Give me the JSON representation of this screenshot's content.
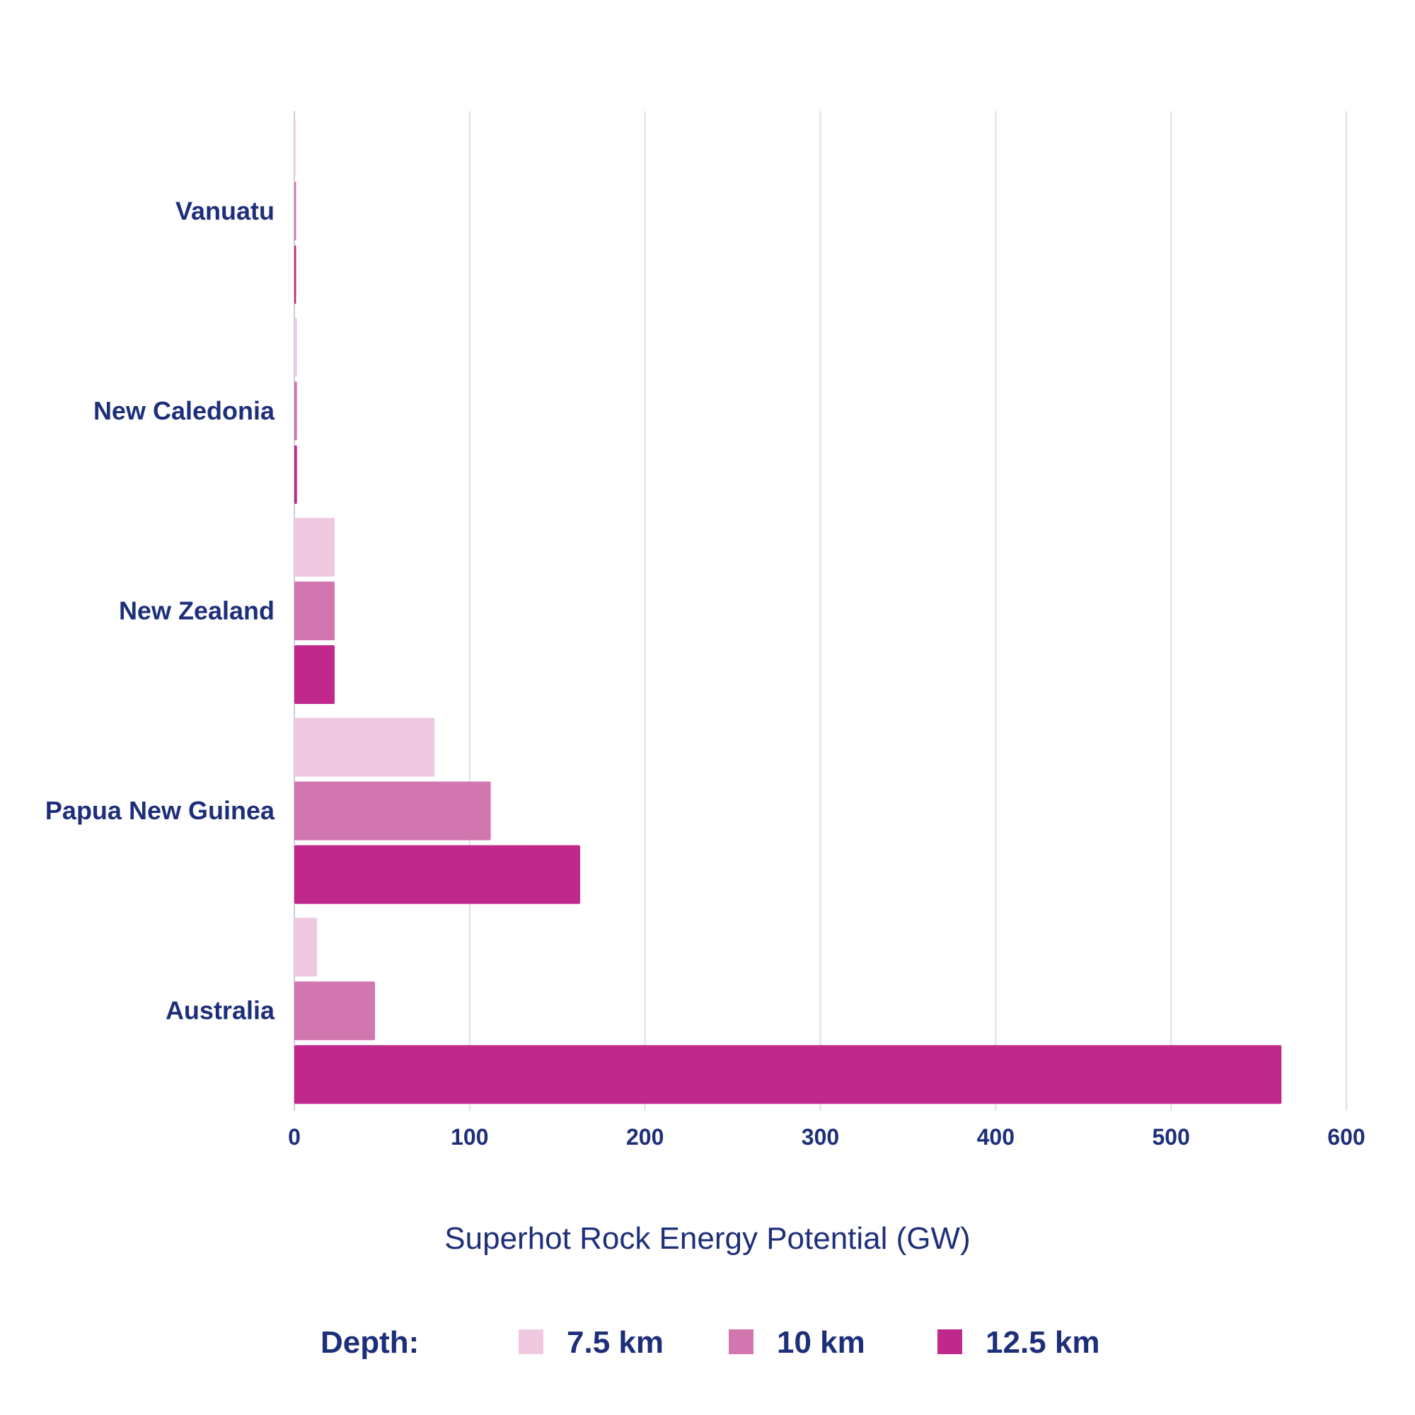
{
  "chart_data": {
    "type": "bar",
    "orientation": "horizontal",
    "title": "",
    "xlabel": "Superhot Rock Energy Potential (GW)",
    "ylabel": "",
    "xlim": [
      0,
      600
    ],
    "xticks": [
      0,
      100,
      200,
      300,
      400,
      500,
      600
    ],
    "grid": true,
    "legend_position": "bottom",
    "legend_title": "Depth:",
    "categories": [
      "Vanuatu",
      "New Caledonia",
      "New Zealand",
      "Papua New Guinea",
      "Australia"
    ],
    "series": [
      {
        "name": "7.5 km",
        "color": "#f0c8e0",
        "values": [
          0.3,
          1.5,
          23,
          80,
          13
        ]
      },
      {
        "name": "10 km",
        "color": "#d276b0",
        "values": [
          1,
          1.5,
          23,
          112,
          46
        ]
      },
      {
        "name": "12.5 km",
        "color": "#c0298b",
        "values": [
          1,
          1.5,
          23,
          163,
          563
        ]
      }
    ]
  }
}
